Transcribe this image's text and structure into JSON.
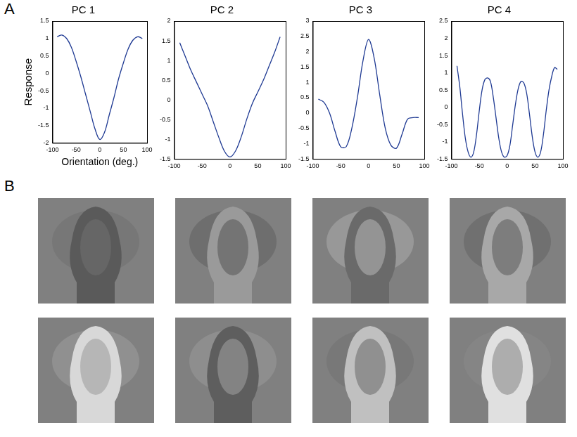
{
  "panel_labels": [
    "A",
    "B"
  ],
  "chart_data": [
    {
      "type": "line",
      "title": "PC 1",
      "x_label": "Orientation (deg.)",
      "y_label": "Response",
      "color": "#1f3a93",
      "grid": false,
      "x": [
        -90,
        -80,
        -70,
        -60,
        -50,
        -40,
        -30,
        -20,
        -10,
        0,
        10,
        20,
        30,
        40,
        50,
        60,
        70,
        80,
        90
      ],
      "values": [
        1.05,
        1.1,
        1.0,
        0.75,
        0.35,
        -0.1,
        -0.6,
        -1.1,
        -1.6,
        -1.9,
        -1.7,
        -1.2,
        -0.7,
        -0.15,
        0.3,
        0.7,
        0.95,
        1.05,
        1.0
      ],
      "xlim": [
        -100,
        100
      ],
      "xticks": [
        -100,
        -50,
        0,
        50,
        100
      ],
      "ylim": [
        -2,
        1.5
      ],
      "yticks": [
        -2,
        -1.5,
        -1,
        -0.5,
        0,
        0.5,
        1,
        1.5
      ]
    },
    {
      "type": "line",
      "title": "PC 2",
      "color": "#1f3a93",
      "grid": false,
      "x": [
        -90,
        -80,
        -70,
        -60,
        -50,
        -40,
        -30,
        -20,
        -10,
        0,
        10,
        20,
        30,
        40,
        50,
        60,
        70,
        80,
        90
      ],
      "values": [
        1.45,
        1.1,
        0.75,
        0.45,
        0.15,
        -0.15,
        -0.55,
        -0.95,
        -1.3,
        -1.45,
        -1.3,
        -0.95,
        -0.5,
        -0.1,
        0.2,
        0.5,
        0.85,
        1.2,
        1.6
      ],
      "xlim": [
        -100,
        100
      ],
      "xticks": [
        -100,
        -50,
        0,
        50,
        100
      ],
      "ylim": [
        -1.5,
        2
      ],
      "yticks": [
        -1.5,
        -1,
        -0.5,
        0,
        0.5,
        1,
        1.5,
        2
      ]
    },
    {
      "type": "line",
      "title": "PC 3",
      "color": "#1f3a93",
      "grid": false,
      "x": [
        -90,
        -80,
        -70,
        -60,
        -50,
        -40,
        -30,
        -20,
        -10,
        0,
        10,
        20,
        30,
        40,
        50,
        60,
        70,
        80,
        90
      ],
      "values": [
        0.45,
        0.35,
        0.0,
        -0.6,
        -1.1,
        -1.1,
        -0.5,
        0.5,
        1.7,
        2.4,
        1.8,
        0.6,
        -0.5,
        -1.05,
        -1.15,
        -0.7,
        -0.2,
        -0.15,
        -0.15
      ],
      "xlim": [
        -100,
        100
      ],
      "xticks": [
        -100,
        -50,
        0,
        50,
        100
      ],
      "ylim": [
        -1.5,
        3
      ],
      "yticks": [
        -1.5,
        -1,
        -0.5,
        0,
        0.5,
        1,
        1.5,
        2,
        2.5,
        3
      ]
    },
    {
      "type": "line",
      "title": "PC 4",
      "color": "#1f3a93",
      "grid": false,
      "x": [
        -90,
        -85,
        -80,
        -75,
        -70,
        -65,
        -60,
        -55,
        -50,
        -45,
        -40,
        -35,
        -30,
        -25,
        -20,
        -15,
        -10,
        -5,
        0,
        5,
        10,
        15,
        20,
        25,
        30,
        35,
        40,
        45,
        50,
        55,
        60,
        65,
        70,
        75,
        80,
        85,
        90
      ],
      "values": [
        1.2,
        0.6,
        -0.2,
        -0.9,
        -1.3,
        -1.45,
        -1.3,
        -0.8,
        -0.1,
        0.5,
        0.8,
        0.85,
        0.75,
        0.3,
        -0.3,
        -0.9,
        -1.3,
        -1.45,
        -1.4,
        -1.1,
        -0.5,
        0.1,
        0.55,
        0.75,
        0.7,
        0.4,
        -0.2,
        -0.85,
        -1.3,
        -1.45,
        -1.3,
        -0.8,
        -0.1,
        0.5,
        0.9,
        1.15,
        1.1
      ],
      "xlim": [
        -100,
        100
      ],
      "xticks": [
        -100,
        -50,
        0,
        50,
        100
      ],
      "ylim": [
        -1.5,
        2.5
      ],
      "yticks": [
        -1.5,
        -1,
        -0.5,
        0,
        0.5,
        1,
        1.5,
        2,
        2.5
      ]
    }
  ]
}
